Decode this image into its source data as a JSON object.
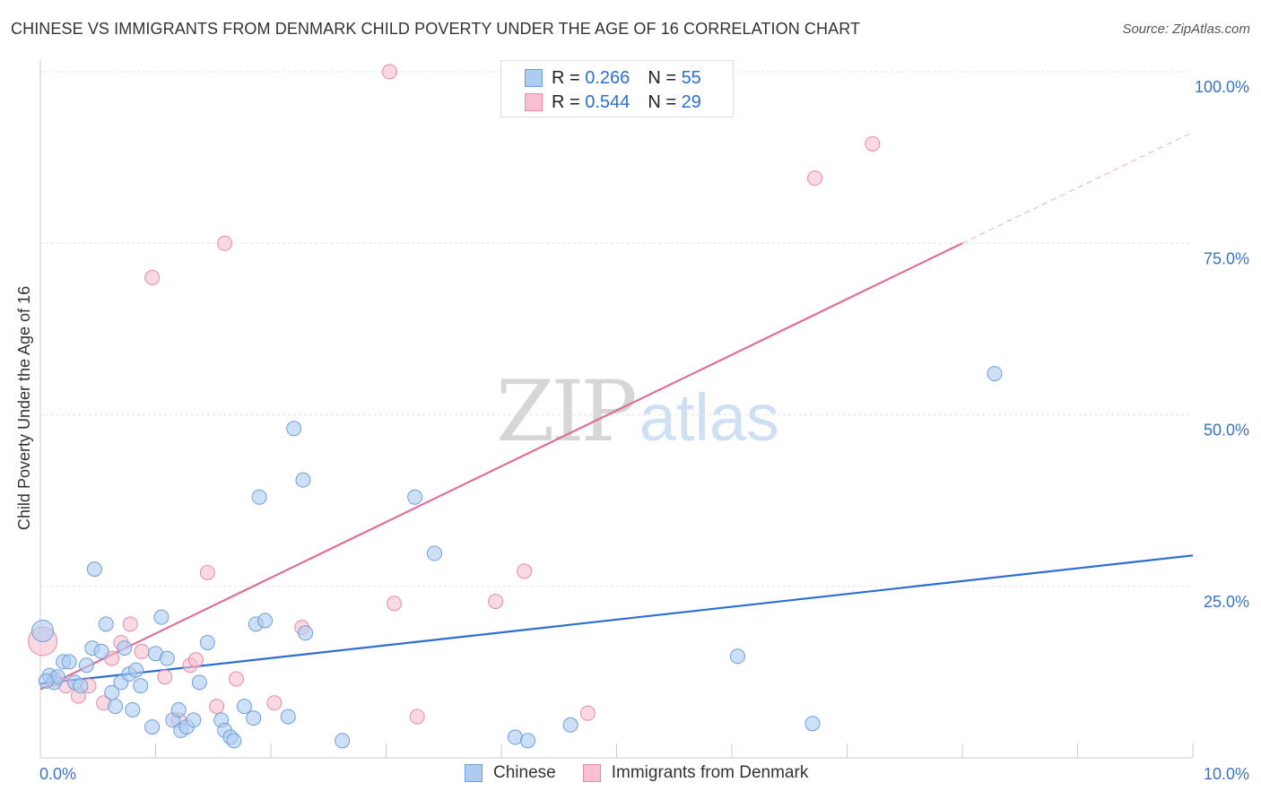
{
  "title": "CHINESE VS IMMIGRANTS FROM DENMARK CHILD POVERTY UNDER THE AGE OF 16 CORRELATION CHART",
  "source": "Source: ZipAtlas.com",
  "watermark": {
    "part1": "ZIP",
    "part2": "atlas"
  },
  "legend": {
    "rows": [
      {
        "r_label": "R =",
        "r_value": "0.266",
        "n_label": "N =",
        "n_value": "55"
      },
      {
        "r_label": "R =",
        "r_value": "0.544",
        "n_label": "N =",
        "n_value": "29"
      }
    ]
  },
  "colors": {
    "chinese_fill": "#aeccf2",
    "chinese_stroke": "#6f9fd8",
    "chinese_line": "#2c6fd1",
    "denmark_fill": "#f8c0d0",
    "denmark_stroke": "#e88aa8",
    "denmark_line": "#e06f97",
    "tick_label": "#3a72c8",
    "grid": "#e2e2e2"
  },
  "chart_data": {
    "type": "scatter",
    "title": "CHINESE VS IMMIGRANTS FROM DENMARK CHILD POVERTY UNDER THE AGE OF 16 CORRELATION CHART",
    "xlabel": "",
    "ylabel": "Child Poverty Under the Age of 16",
    "xlim": [
      0,
      10
    ],
    "ylim": [
      0,
      100
    ],
    "x_tick_labels": [
      "0.0%",
      "10.0%"
    ],
    "y_tick_labels": [
      "25.0%",
      "50.0%",
      "75.0%",
      "100.0%"
    ],
    "y_ticks": [
      25,
      50,
      75,
      100
    ],
    "grid": true,
    "legend_position": "top-center",
    "series": [
      {
        "name": "Chinese",
        "color": "#2c6fd1",
        "R": 0.266,
        "N": 55,
        "trend": {
          "x": [
            0,
            10
          ],
          "y": [
            10.8,
            29.5
          ]
        },
        "points": [
          [
            0.02,
            18.5
          ],
          [
            0.08,
            12.0
          ],
          [
            0.12,
            11.0
          ],
          [
            0.15,
            11.8
          ],
          [
            0.2,
            14.0
          ],
          [
            0.25,
            14.0
          ],
          [
            0.3,
            11.0
          ],
          [
            0.35,
            10.5
          ],
          [
            0.4,
            13.5
          ],
          [
            0.45,
            16.0
          ],
          [
            0.47,
            27.5
          ],
          [
            0.53,
            15.5
          ],
          [
            0.57,
            19.5
          ],
          [
            0.62,
            9.5
          ],
          [
            0.65,
            7.5
          ],
          [
            0.7,
            11.0
          ],
          [
            0.73,
            16.0
          ],
          [
            0.77,
            12.2
          ],
          [
            0.8,
            7.0
          ],
          [
            0.83,
            12.8
          ],
          [
            0.87,
            10.5
          ],
          [
            0.97,
            4.5
          ],
          [
            1.0,
            15.2
          ],
          [
            1.05,
            20.5
          ],
          [
            1.1,
            14.5
          ],
          [
            1.15,
            5.5
          ],
          [
            1.2,
            7.0
          ],
          [
            1.22,
            4.0
          ],
          [
            1.27,
            4.5
          ],
          [
            1.33,
            5.5
          ],
          [
            1.38,
            11.0
          ],
          [
            1.45,
            16.8
          ],
          [
            1.57,
            5.5
          ],
          [
            1.6,
            4.0
          ],
          [
            1.65,
            3.0
          ],
          [
            1.68,
            2.5
          ],
          [
            1.77,
            7.5
          ],
          [
            1.85,
            5.8
          ],
          [
            1.87,
            19.5
          ],
          [
            1.9,
            38.0
          ],
          [
            1.95,
            20.0
          ],
          [
            2.15,
            6.0
          ],
          [
            2.2,
            48.0
          ],
          [
            2.28,
            40.5
          ],
          [
            2.3,
            18.2
          ],
          [
            2.62,
            2.5
          ],
          [
            3.25,
            38.0
          ],
          [
            3.42,
            29.8
          ],
          [
            4.12,
            3.0
          ],
          [
            4.23,
            2.5
          ],
          [
            4.6,
            4.8
          ],
          [
            6.05,
            14.8
          ],
          [
            6.7,
            5.0
          ],
          [
            8.28,
            56.0
          ],
          [
            0.05,
            11.2
          ]
        ]
      },
      {
        "name": "Immigrants from Denmark",
        "color": "#e06f97",
        "R": 0.544,
        "N": 29,
        "trend": {
          "x": [
            0,
            8.0
          ],
          "y": [
            10.0,
            75.0
          ]
        },
        "trend_extension": {
          "x": [
            8.0,
            10.0
          ],
          "y": [
            75.0,
            91.2
          ]
        },
        "points": [
          [
            0.02,
            17.0
          ],
          [
            0.12,
            11.5
          ],
          [
            0.22,
            10.5
          ],
          [
            0.33,
            9.0
          ],
          [
            0.42,
            10.5
          ],
          [
            0.55,
            8.0
          ],
          [
            0.62,
            14.5
          ],
          [
            0.7,
            16.8
          ],
          [
            0.78,
            19.5
          ],
          [
            0.88,
            15.5
          ],
          [
            0.97,
            70.0
          ],
          [
            1.08,
            11.8
          ],
          [
            1.2,
            5.5
          ],
          [
            1.3,
            13.5
          ],
          [
            1.35,
            14.3
          ],
          [
            1.45,
            27.0
          ],
          [
            1.53,
            7.5
          ],
          [
            1.6,
            75.0
          ],
          [
            1.7,
            11.5
          ],
          [
            2.03,
            8.0
          ],
          [
            2.27,
            19.0
          ],
          [
            3.03,
            100.0
          ],
          [
            3.07,
            22.5
          ],
          [
            3.27,
            6.0
          ],
          [
            3.95,
            22.8
          ],
          [
            4.2,
            27.2
          ],
          [
            4.75,
            6.5
          ],
          [
            6.72,
            84.5
          ],
          [
            7.22,
            89.5
          ]
        ]
      }
    ]
  }
}
